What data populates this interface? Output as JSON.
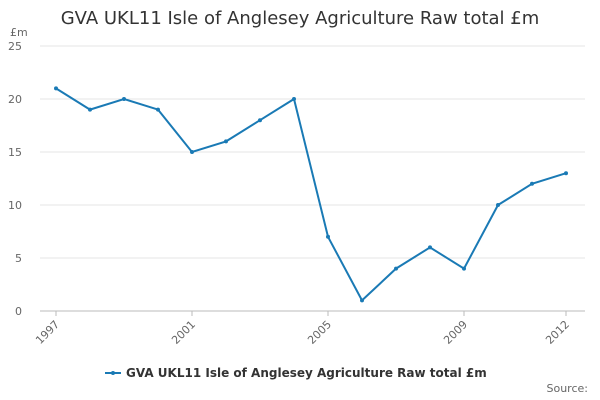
{
  "chart_data": {
    "type": "line",
    "title": "GVA UKL11 Isle of Anglesey Agriculture Raw total £m",
    "y_label": "£m",
    "x": [
      1997,
      1998,
      1999,
      2000,
      2001,
      2002,
      2003,
      2004,
      2005,
      2006,
      2007,
      2008,
      2009,
      2010,
      2011,
      2012
    ],
    "xlim": [
      1997,
      2012
    ],
    "xticks": [
      1997,
      2001,
      2005,
      2009,
      2012
    ],
    "series": [
      {
        "name": "GVA UKL11 Isle of Anglesey Agriculture Raw total £m",
        "color": "#1a7ab5",
        "values": [
          21,
          19,
          20,
          19,
          15,
          16,
          18,
          20,
          7,
          1,
          4,
          6,
          4,
          10,
          12,
          13
        ]
      }
    ],
    "ylim": [
      0,
      25
    ],
    "yticks": [
      0,
      5,
      10,
      15,
      20,
      25
    ],
    "grid": true,
    "source": "Source:"
  }
}
